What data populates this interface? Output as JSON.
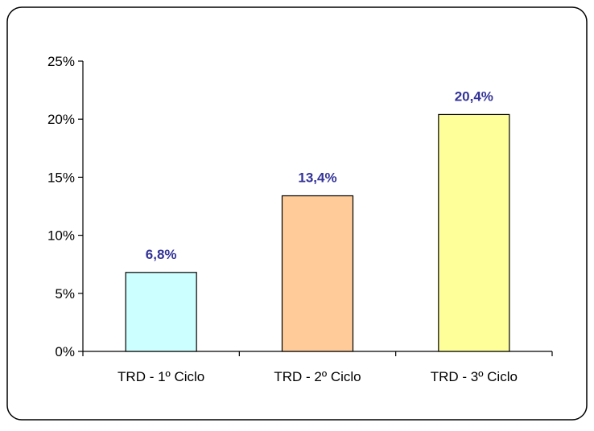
{
  "chart_data": {
    "type": "bar",
    "title": "",
    "xlabel": "",
    "ylabel": "",
    "categories": [
      "TRD - 1º Ciclo",
      "TRD - 2º Ciclo",
      "TRD - 3º Ciclo"
    ],
    "values": [
      6.8,
      13.4,
      20.4
    ],
    "data_labels": [
      "6,8%",
      "13,4%",
      "20,4%"
    ],
    "bar_colors": [
      "#CCFFFF",
      "#FFCC99",
      "#FFFF99"
    ],
    "label_color": "#333399",
    "ylim": [
      0,
      25
    ],
    "yticks": [
      0,
      5,
      10,
      15,
      20,
      25
    ],
    "ytick_labels": [
      "0%",
      "5%",
      "10%",
      "15%",
      "20%",
      "25%"
    ],
    "grid": false,
    "legend": "none"
  }
}
